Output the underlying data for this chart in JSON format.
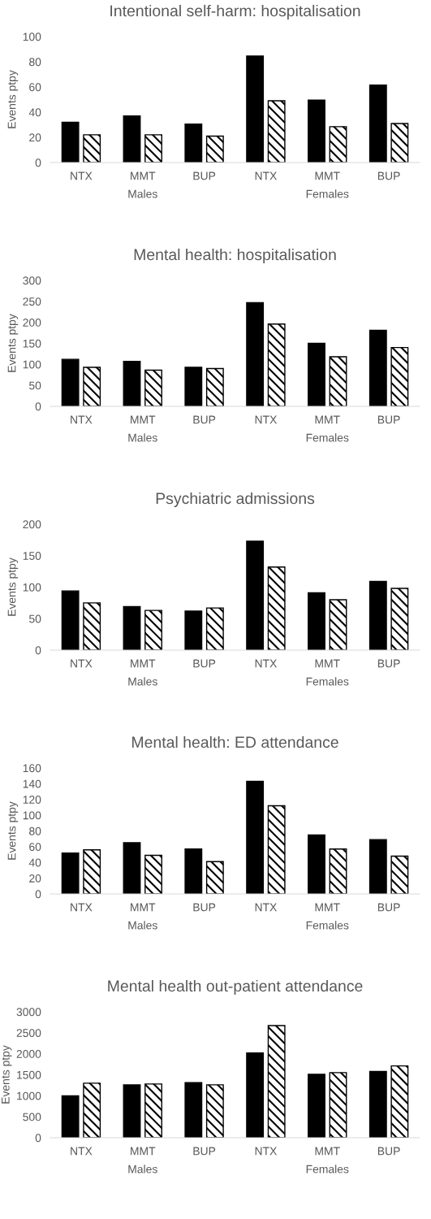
{
  "chart_data": [
    {
      "type": "bar",
      "title": "Intentional self-harm: hospitalisation",
      "ylabel": "Events ptpy",
      "categories": [
        "NTX",
        "MMT",
        "BUP",
        "NTX",
        "MMT",
        "BUP"
      ],
      "annotations": [
        "Males",
        "Females"
      ],
      "ylim": [
        0,
        100
      ],
      "yticks": [
        0,
        20,
        40,
        60,
        80,
        100
      ],
      "series": [
        {
          "color": "#000000",
          "values": [
            32,
            37,
            30.5,
            84.5,
            49.5,
            61.5
          ]
        },
        {
          "color": "#000000",
          "values": [
            22,
            22,
            21,
            49,
            28.5,
            31
          ]
        }
      ]
    },
    {
      "type": "bar",
      "title": "Mental health: hospitalisation",
      "ylabel": "Events ptpy",
      "categories": [
        "NTX",
        "MMT",
        "BUP",
        "NTX",
        "MMT",
        "BUP"
      ],
      "annotations": [
        "Males",
        "Females"
      ],
      "ylim": [
        0,
        300
      ],
      "yticks": [
        0,
        50,
        100,
        150,
        200,
        250,
        300
      ],
      "series": [
        {
          "color": "#000000",
          "values": [
            112,
            107,
            93,
            247,
            150,
            181
          ]
        },
        {
          "color": "#000000",
          "values": [
            93,
            86,
            90,
            196,
            118,
            140
          ]
        }
      ]
    },
    {
      "type": "bar",
      "title": "Psychiatric admissions",
      "ylabel": "Events ptpy",
      "categories": [
        "NTX",
        "MMT",
        "BUP",
        "NTX",
        "MMT",
        "BUP"
      ],
      "annotations": [
        "Males",
        "Females"
      ],
      "ylim": [
        0,
        200
      ],
      "yticks": [
        0,
        50,
        100,
        150,
        200
      ],
      "series": [
        {
          "color": "#000000",
          "values": [
            94,
            69,
            62,
            173,
            91,
            109
          ]
        },
        {
          "color": "#000000",
          "values": [
            75,
            63,
            67,
            132,
            80,
            98
          ]
        }
      ]
    },
    {
      "type": "bar",
      "title": "Mental health: ED attendance",
      "ylabel": "Events ptpy",
      "categories": [
        "NTX",
        "MMT",
        "BUP",
        "NTX",
        "MMT",
        "BUP"
      ],
      "annotations": [
        "Males",
        "Females"
      ],
      "ylim": [
        0,
        160
      ],
      "yticks": [
        0,
        20,
        40,
        60,
        80,
        100,
        120,
        140,
        160
      ],
      "series": [
        {
          "color": "#000000",
          "values": [
            52,
            65,
            57,
            143,
            75,
            69
          ]
        },
        {
          "color": "#000000",
          "values": [
            56,
            49,
            41,
            112,
            57,
            48
          ]
        }
      ]
    },
    {
      "type": "bar",
      "title": "Mental health out-patient attendance",
      "ylabel": "Events ptpy",
      "categories": [
        "NTX",
        "MMT",
        "BUP",
        "NTX",
        "MMT",
        "BUP"
      ],
      "annotations": [
        "Males",
        "Females"
      ],
      "ylim": [
        0,
        3000
      ],
      "yticks": [
        0,
        500,
        1000,
        1500,
        2000,
        2500,
        3000
      ],
      "series": [
        {
          "color": "#000000",
          "values": [
            1000,
            1260,
            1310,
            2020,
            1510,
            1580
          ]
        },
        {
          "color": "#000000",
          "values": [
            1300,
            1280,
            1260,
            2670,
            1550,
            1710
          ]
        }
      ]
    }
  ]
}
